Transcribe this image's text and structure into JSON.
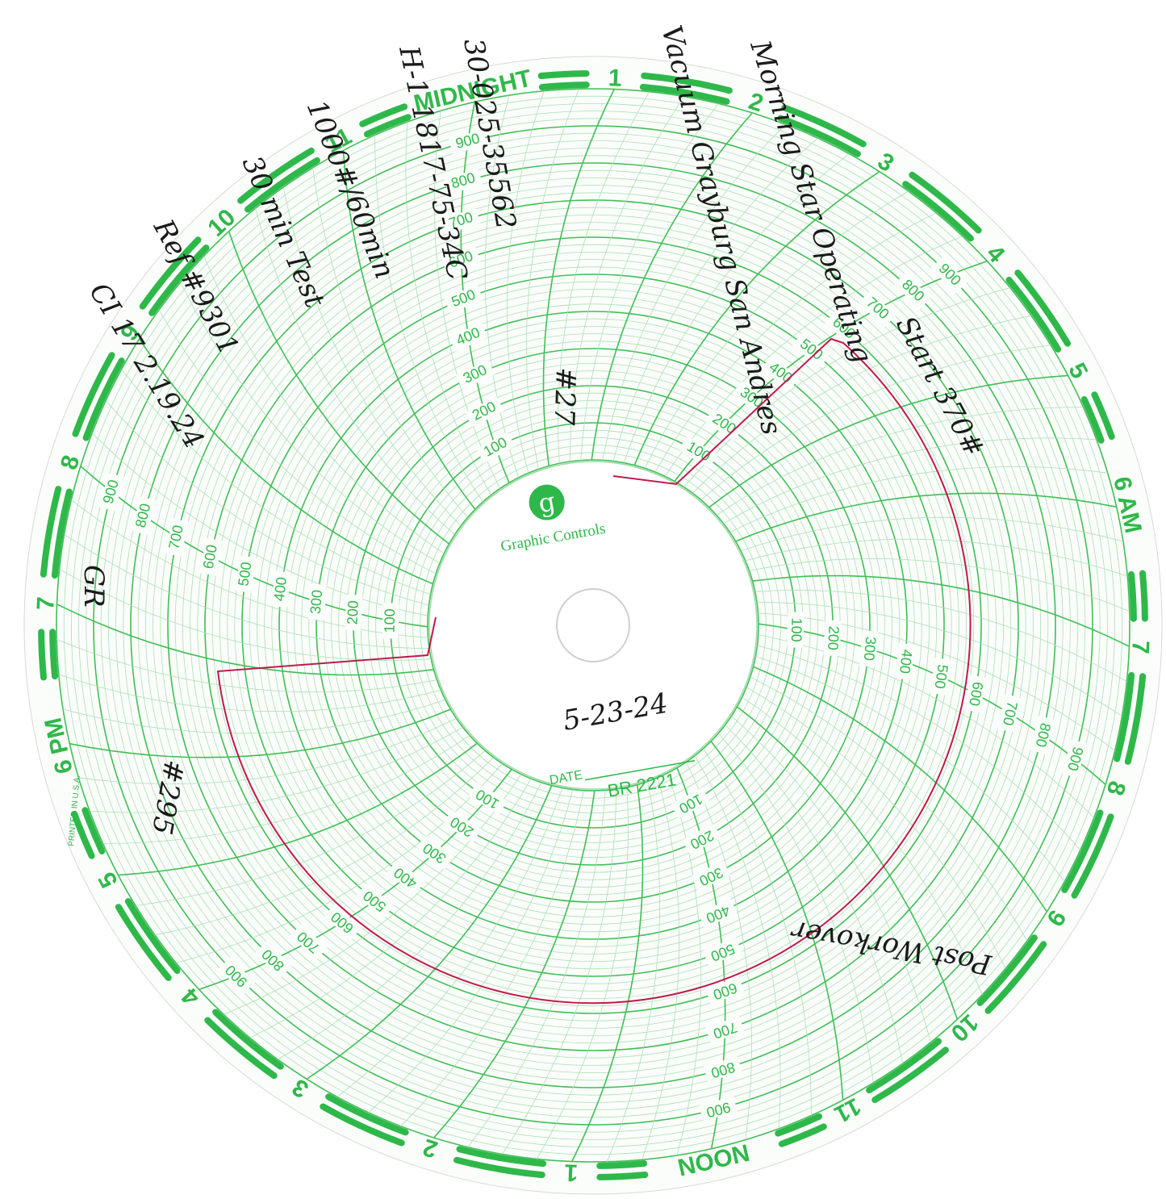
{
  "chart_paper": {
    "hours": [
      "MIDNIGHT",
      "1",
      "2",
      "3",
      "4",
      "5",
      "6 AM",
      "7",
      "8",
      "9",
      "10",
      "11",
      "NOON",
      "1",
      "2",
      "3",
      "4",
      "5",
      "6 PM",
      "7",
      "8",
      "9",
      "10",
      "11"
    ],
    "scale": [
      100,
      200,
      300,
      400,
      500,
      600,
      700,
      800,
      900
    ],
    "logo": "g",
    "brand": "Graphic Controls",
    "date_label": "DATE",
    "model": "BR 2221",
    "printed": "PRINTED IN U.S.A."
  },
  "handwriting": {
    "date": "5-23-24",
    "operator": "Morning Star Operating",
    "field": "Vacuum Grayburg San Andres",
    "start": "Start 370#",
    "well_no": "#27",
    "api": "30-025-35562",
    "location": "H-1 1817-75-34C",
    "test_pressure": "1000#/60min",
    "test_length": "30 min Test",
    "reference": "Ref #9301",
    "calibration": "CI 17 2.19.24",
    "initials": "GR",
    "unit": "#295",
    "remark": "Post Workover"
  }
}
